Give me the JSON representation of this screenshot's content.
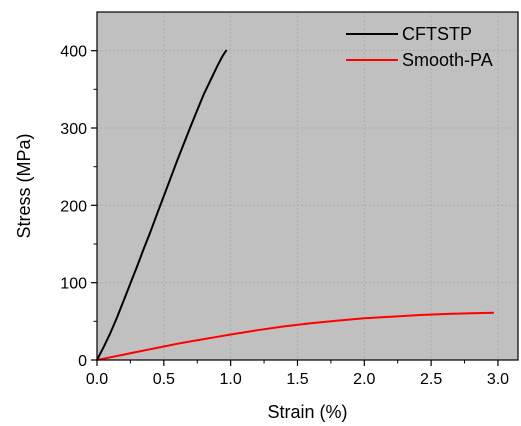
{
  "chart_data": {
    "type": "line",
    "xlabel": "Strain (%)",
    "ylabel": "Stress (MPa)",
    "xlim": [
      0,
      3.15
    ],
    "ylim": [
      0,
      450
    ],
    "x_ticks": [
      0.0,
      0.5,
      1.0,
      1.5,
      2.0,
      2.5,
      3.0
    ],
    "x_tick_labels": [
      "0.0",
      "0.5",
      "1.0",
      "1.5",
      "2.0",
      "2.5",
      "3.0"
    ],
    "y_ticks": [
      0,
      100,
      200,
      300,
      400
    ],
    "y_tick_labels": [
      "0",
      "100",
      "200",
      "300",
      "400"
    ],
    "grid": true,
    "legend_position": "top-right",
    "plot_background": "#c0c0c0",
    "series": [
      {
        "name": "CFTSTP",
        "color": "#000000",
        "x": [
          0.0,
          0.05,
          0.1,
          0.15,
          0.2,
          0.25,
          0.3,
          0.35,
          0.4,
          0.45,
          0.5,
          0.55,
          0.6,
          0.65,
          0.7,
          0.75,
          0.8,
          0.85,
          0.9,
          0.93,
          0.95,
          0.97
        ],
        "y": [
          0,
          17,
          35,
          55,
          77,
          99,
          121,
          144,
          166,
          189,
          212,
          235,
          258,
          280,
          302,
          323,
          344,
          362,
          380,
          390,
          396,
          401
        ]
      },
      {
        "name": "Smooth-PA",
        "color": "#ff0000",
        "x": [
          0.0,
          0.1,
          0.2,
          0.3,
          0.4,
          0.5,
          0.6,
          0.7,
          0.8,
          0.9,
          1.0,
          1.2,
          1.4,
          1.6,
          1.8,
          2.0,
          2.2,
          2.4,
          2.6,
          2.8,
          2.97
        ],
        "y": [
          0,
          3.5,
          7,
          10.5,
          14,
          17.5,
          21,
          24,
          27,
          30,
          33,
          38.5,
          43.5,
          47.5,
          51,
          54,
          56,
          58,
          59.5,
          60.5,
          61
        ]
      }
    ]
  }
}
